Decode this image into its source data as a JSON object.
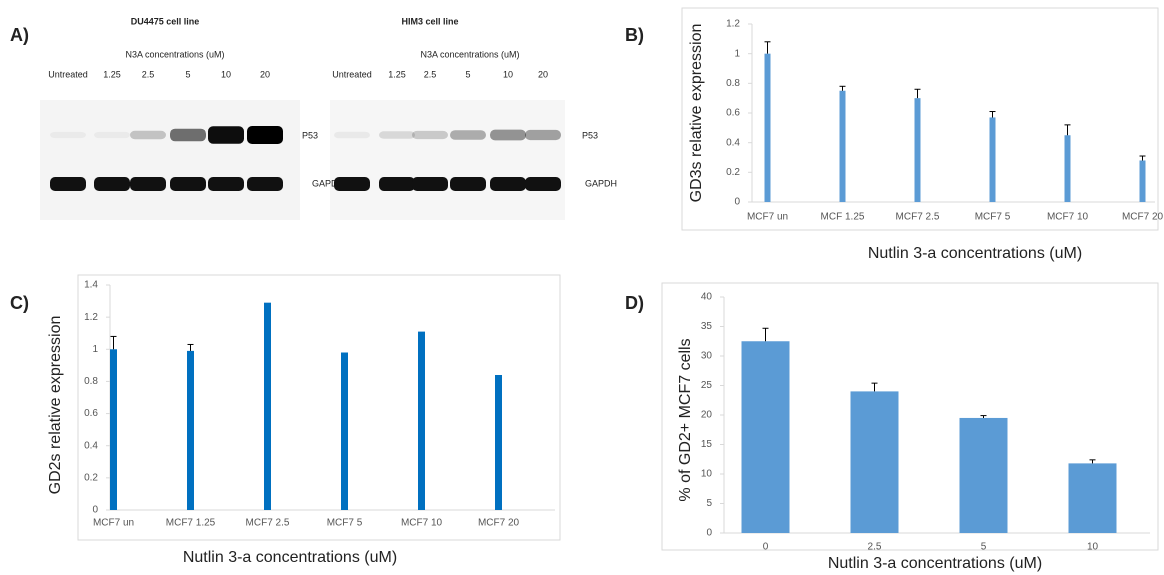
{
  "blot": {
    "panel_label": "A)",
    "blots": [
      {
        "title": "DU4475 cell line",
        "subtitle": "N3A concentrations (uM)",
        "lanes": [
          "Untreated",
          "1.25",
          "2.5",
          "5",
          "10",
          "20"
        ],
        "target": "P53",
        "control": "GAPDH"
      },
      {
        "title": "HIM3 cell line",
        "subtitle": "N3A concentrations (uM)",
        "lanes": [
          "Untreated",
          "1.25",
          "2.5",
          "5",
          "10",
          "20"
        ],
        "target": "P53",
        "control": "GAPDH"
      }
    ]
  },
  "chart_data": [
    {
      "type": "bar",
      "panel_label": "B)",
      "y_label": "GD3s relative expression",
      "x_label": "Nutlin 3-a concentrations (uM)",
      "categories": [
        "MCF7 un",
        "MCF 1.25",
        "MCF7 2.5",
        "MCF7 5",
        "MCF7 10",
        "MCF7 20"
      ],
      "values": [
        1.0,
        0.75,
        0.7,
        0.57,
        0.45,
        0.28
      ],
      "errors": [
        0.08,
        0.03,
        0.06,
        0.04,
        0.07,
        0.03
      ],
      "color": "#5b9bd5",
      "ylim": [
        0,
        1.2
      ],
      "yticks": [
        0,
        0.2,
        0.4,
        0.6,
        0.8,
        1,
        1.2
      ],
      "grid": false
    },
    {
      "type": "bar",
      "panel_label": "C)",
      "y_label": "GD2s relative expression",
      "x_label": "Nutlin 3-a concentrations (uM)",
      "categories": [
        "MCF7 un",
        "MCF7 1.25",
        "MCF7 2.5",
        "MCF7 5",
        "MCF7 10",
        "MCF7 20"
      ],
      "values": [
        1.0,
        0.99,
        1.29,
        0.98,
        1.11,
        0.84
      ],
      "errors": [
        0.08,
        0.04,
        null,
        null,
        null,
        null
      ],
      "color": "#0070c0",
      "ylim": [
        0,
        1.4
      ],
      "yticks": [
        0,
        0.2,
        0.4,
        0.6,
        0.8,
        1,
        1.2,
        1.4
      ],
      "grid": false
    },
    {
      "type": "bar",
      "panel_label": "D)",
      "y_label": "% of GD2+ MCF7 cells",
      "x_label": "Nutlin 3-a concentrations (uM)",
      "categories": [
        "0",
        "2.5",
        "5",
        "10"
      ],
      "values": [
        32.5,
        24,
        19.5,
        11.8
      ],
      "errors": [
        2.2,
        1.4,
        0.4,
        0.6
      ],
      "color": "#5b9bd5",
      "ylim": [
        0,
        40
      ],
      "yticks": [
        0,
        5,
        10,
        15,
        20,
        25,
        30,
        35,
        40
      ],
      "grid": false
    }
  ]
}
